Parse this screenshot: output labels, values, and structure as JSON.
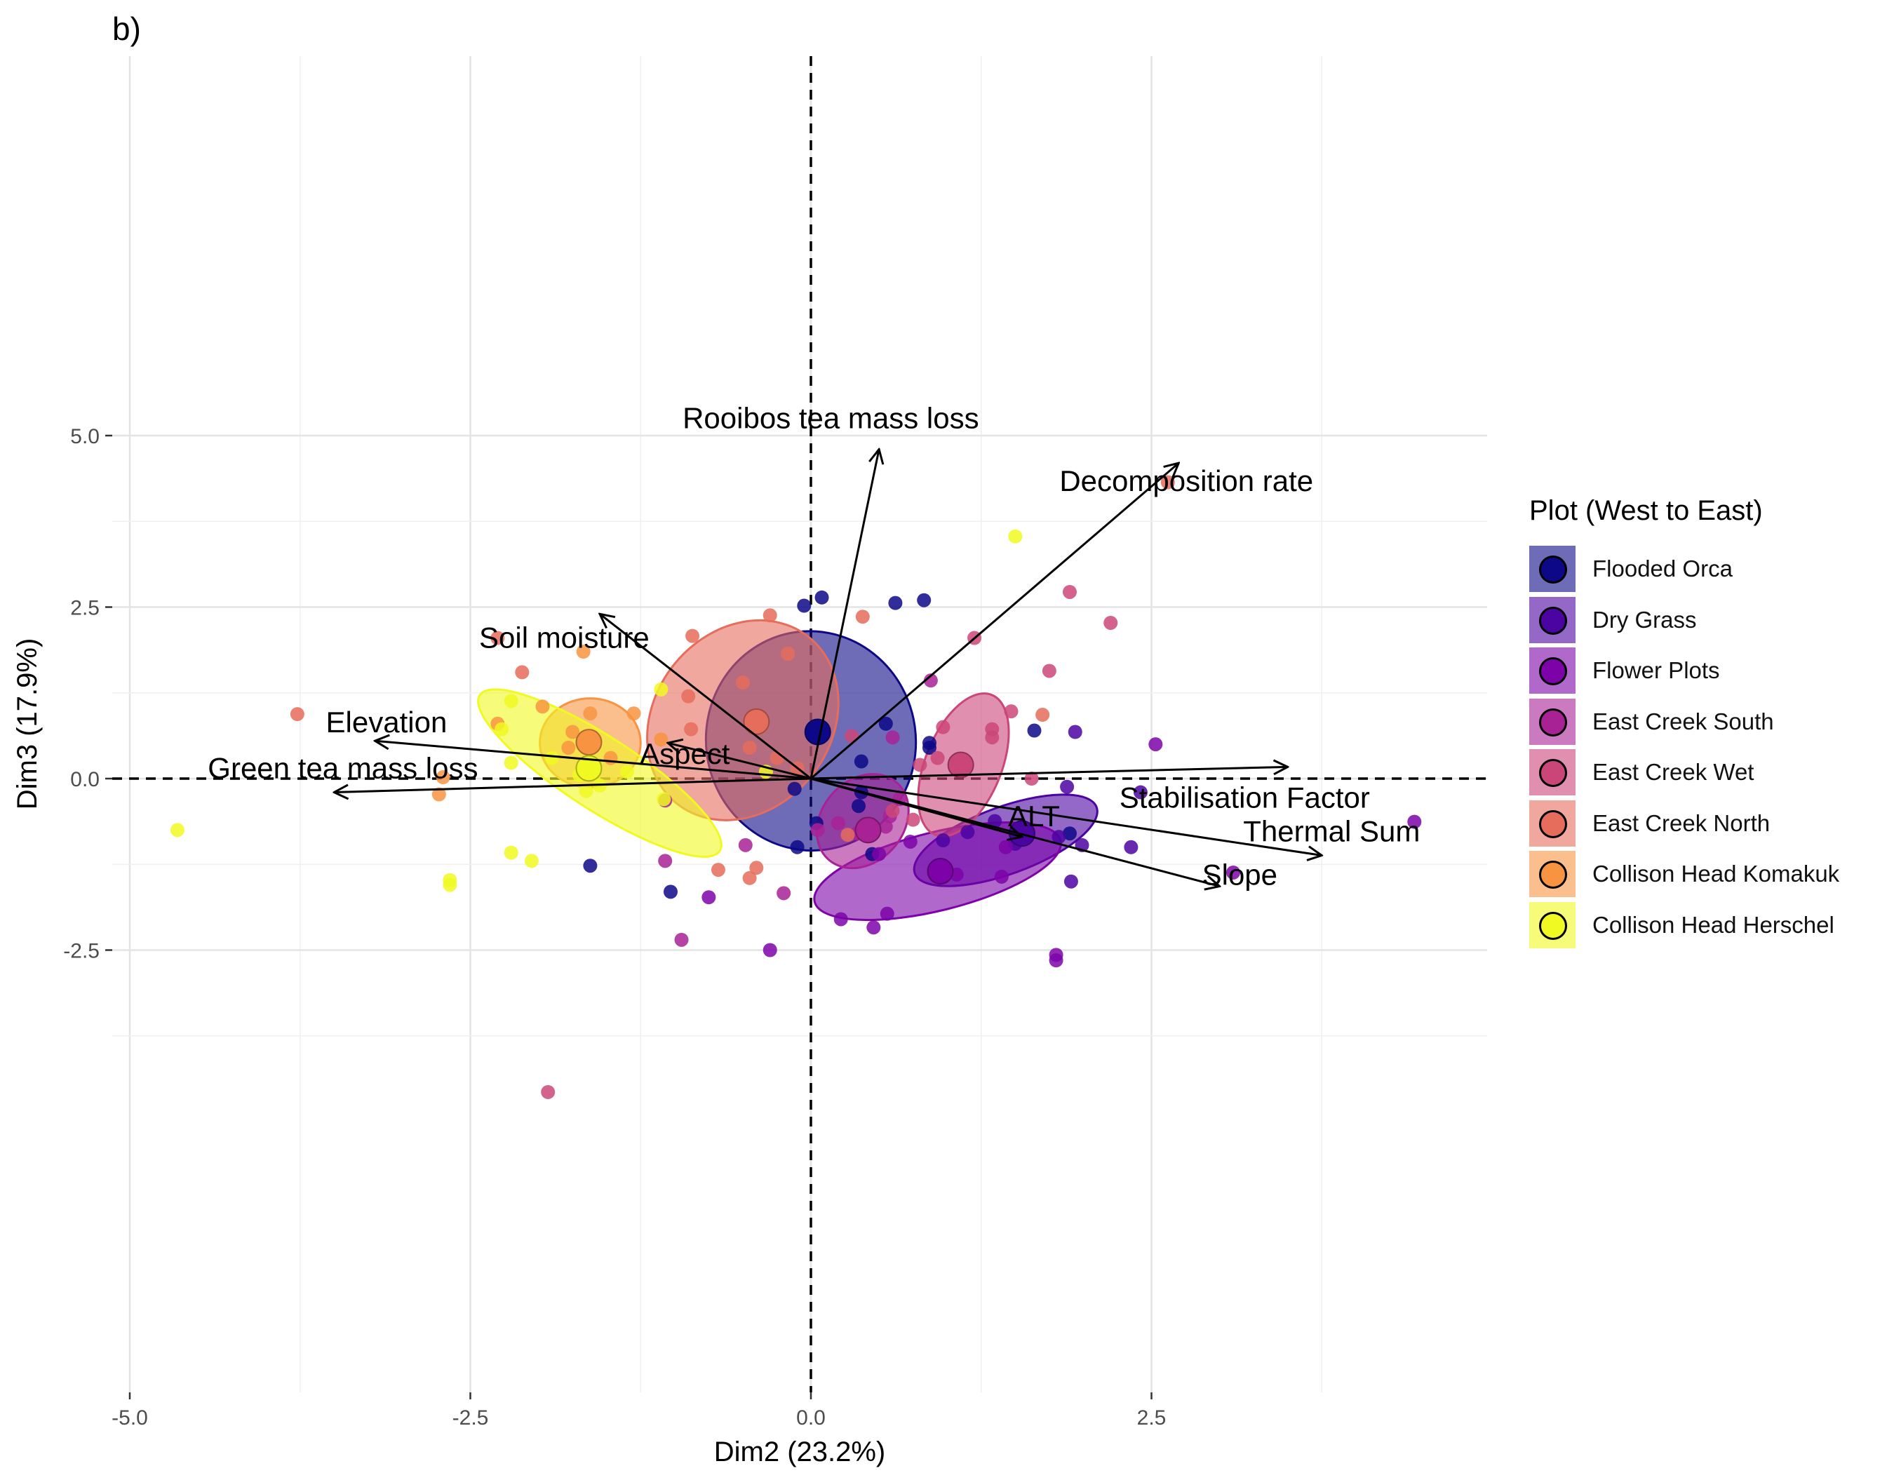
{
  "panel_label": "b)",
  "legend": {
    "title": "Plot (West to East)",
    "items": [
      {
        "name": "Flooded Orca",
        "color": "#0D0887"
      },
      {
        "name": "Dry Grass",
        "color": "#4B03A1"
      },
      {
        "name": "Flower Plots",
        "color": "#7D03A8"
      },
      {
        "name": "East Creek South",
        "color": "#A82296"
      },
      {
        "name": "East Creek Wet",
        "color": "#CB4678"
      },
      {
        "name": "East Creek North",
        "color": "#E66C5C"
      },
      {
        "name": "Collison Head Komakuk",
        "color": "#F89441"
      },
      {
        "name": "Collison Head Herschel",
        "color": "#F0F921"
      }
    ]
  },
  "chart_data": {
    "type": "scatter",
    "title": "",
    "xlabel": "Dim2 (23.2%)",
    "ylabel": "Dim3 (17.9%)",
    "xlim": [
      -5.0,
      4.9
    ],
    "ylim": [
      -4.6,
      5.15
    ],
    "xticks": [
      -5.0,
      -2.5,
      0.0,
      2.5
    ],
    "xtick_labels": [
      "-5.0",
      "-2.5",
      "0.0",
      "2.5"
    ],
    "yticks": [
      5.0,
      2.5,
      0.0,
      -2.5
    ],
    "ytick_labels": [
      "5.0",
      "2.5",
      "0.0",
      "-2.5"
    ],
    "grid": true,
    "reference_lines": {
      "x": 0,
      "y": 0,
      "style": "dashed"
    },
    "legend_position": "right",
    "vectors": [
      {
        "label": "Rooibos tea mass loss",
        "x": 0.5,
        "y": 4.8
      },
      {
        "label": "Decomposition rate",
        "x": 2.7,
        "y": 4.6
      },
      {
        "label": "Soil moisture",
        "x": -1.55,
        "y": 2.4
      },
      {
        "label": "Elevation",
        "x": -3.2,
        "y": 0.55
      },
      {
        "label": "Aspect",
        "x": -1.05,
        "y": 0.52
      },
      {
        "label": "Green tea mass loss",
        "x": -3.5,
        "y": -0.2
      },
      {
        "label": "Stabilisation Factor",
        "x": 3.5,
        "y": 0.17
      },
      {
        "label": "ALT",
        "x": 1.55,
        "y": -0.85
      },
      {
        "label": "Thermal Sum",
        "x": 3.75,
        "y": -1.12
      },
      {
        "label": "Slope",
        "x": 3.0,
        "y": -1.57
      }
    ],
    "series": [
      {
        "name": "Flooded Orca",
        "color": "#0D0887",
        "centroid": [
          0.05,
          0.68
        ],
        "ellipse": {
          "cx": 0.0,
          "cy": 0.55,
          "rx": 0.77,
          "ry": 1.6,
          "angle": -8
        },
        "x": [
          -0.05,
          0.08,
          0.62,
          0.83,
          0.55,
          0.87,
          0.87,
          0.37,
          -0.12,
          0.04,
          0.37,
          1.64,
          -1.62,
          -1.03,
          -0.1,
          0.45,
          0.35,
          1.9
        ],
        "y": [
          2.52,
          2.64,
          2.56,
          2.6,
          0.8,
          0.52,
          0.45,
          0.25,
          -0.15,
          -0.65,
          -0.2,
          0.7,
          -1.27,
          -1.65,
          -1.0,
          -1.1,
          -0.4,
          -0.8
        ]
      },
      {
        "name": "Dry Grass",
        "color": "#4B03A1",
        "centroid": [
          1.55,
          -0.8
        ],
        "ellipse": {
          "cx": 1.43,
          "cy": -0.9,
          "rx": 0.71,
          "ry": 0.49,
          "angle": -20
        },
        "x": [
          1.94,
          2.42,
          1.88,
          1.82,
          1.99,
          2.35,
          1.91,
          1.5,
          1.15,
          1.35,
          0.97
        ],
        "y": [
          0.68,
          -0.2,
          -0.12,
          -0.85,
          -0.97,
          -1.0,
          -1.5,
          -0.95,
          -0.78,
          -0.62,
          -0.9
        ]
      },
      {
        "name": "Flower Plots",
        "color": "#7D03A8",
        "centroid": [
          0.95,
          -1.35
        ],
        "ellipse": {
          "cx": 0.93,
          "cy": -1.35,
          "rx": 0.93,
          "ry": 0.57,
          "angle": -14
        },
        "x": [
          4.43,
          2.53,
          3.1,
          1.8,
          1.8,
          0.56,
          0.46,
          0.22,
          -0.3,
          -0.75,
          1.07,
          1.4,
          1.43,
          0.73,
          0.5
        ],
        "y": [
          -0.63,
          0.5,
          -1.37,
          -2.57,
          -2.65,
          -1.97,
          -2.17,
          -2.05,
          -2.5,
          -1.73,
          -1.4,
          -1.43,
          -1.0,
          -0.92,
          -1.1
        ]
      },
      {
        "name": "East Creek South",
        "color": "#A82296",
        "centroid": [
          0.42,
          -0.75
        ],
        "ellipse": {
          "cx": 0.38,
          "cy": -0.62,
          "rx": 0.3,
          "ry": 0.75,
          "angle": 42
        },
        "x": [
          0.88,
          0.6,
          0.65,
          0.58,
          0.55,
          0.2,
          0.05,
          -0.48,
          -1.07,
          -1.07,
          -0.95,
          -0.2,
          0.34
        ],
        "y": [
          1.43,
          0.6,
          -0.3,
          -0.55,
          -0.7,
          -0.65,
          -0.75,
          -0.97,
          -0.32,
          -1.2,
          -2.35,
          -1.67,
          -0.8
        ]
      },
      {
        "name": "East Creek Wet",
        "color": "#CB4678",
        "centroid": [
          1.1,
          0.2
        ],
        "ellipse": {
          "cx": 1.12,
          "cy": 0.2,
          "rx": 0.28,
          "ry": 1.1,
          "angle": 22
        },
        "x": [
          1.9,
          2.2,
          1.2,
          1.75,
          1.47,
          0.97,
          1.33,
          1.33,
          0.93,
          0.8,
          1.62,
          0.3,
          0.75,
          -1.93,
          0.6
        ],
        "y": [
          2.72,
          2.27,
          2.05,
          1.57,
          0.98,
          0.75,
          0.72,
          0.6,
          0.3,
          0.2,
          0.0,
          0.62,
          -0.6,
          -4.57,
          -0.47
        ]
      },
      {
        "name": "East Creek North",
        "color": "#E66C5C",
        "centroid": [
          -0.4,
          0.83
        ],
        "ellipse": {
          "cx": -0.5,
          "cy": 0.85,
          "rx": 0.78,
          "ry": 1.29,
          "angle": -52
        },
        "x": [
          -3.77,
          -2.3,
          -2.12,
          -0.87,
          -0.3,
          -0.17,
          0.38,
          2.62,
          -0.9,
          -0.5,
          -0.88,
          -0.45,
          -0.25,
          1.7,
          -0.68,
          -0.45,
          -0.4,
          0.27,
          -0.1
        ],
        "y": [
          0.94,
          2.05,
          1.55,
          2.08,
          2.38,
          1.82,
          2.36,
          4.32,
          1.2,
          1.4,
          0.72,
          0.45,
          0.3,
          0.93,
          -1.33,
          -1.45,
          -1.3,
          -0.82,
          0.15
        ]
      },
      {
        "name": "Collison Head Komakuk",
        "color": "#F89441",
        "centroid": [
          -1.63,
          0.53
        ],
        "ellipse": {
          "cx": -1.62,
          "cy": 0.52,
          "rx": 0.37,
          "ry": 0.65,
          "angle": 0
        },
        "x": [
          -1.67,
          -1.62,
          -1.97,
          -1.3,
          -1.1,
          -2.73,
          -2.7,
          -2.3,
          -1.6,
          -1.78,
          -1.47,
          -1.75
        ],
        "y": [
          1.85,
          0.95,
          1.05,
          0.95,
          0.57,
          -0.23,
          0.02,
          0.8,
          0.6,
          0.45,
          0.3,
          0.68
        ]
      },
      {
        "name": "Collison Head Herschel",
        "color": "#F0F921",
        "centroid": [
          -1.63,
          0.15
        ],
        "ellipse": {
          "cx": -1.55,
          "cy": 0.08,
          "rx": 1.05,
          "ry": 0.53,
          "angle": 33
        },
        "x": [
          -4.65,
          -2.65,
          -2.65,
          -2.2,
          -2.05,
          -2.2,
          -2.27,
          -2.2,
          -1.1,
          1.5,
          -1.55,
          -1.65,
          -1.9,
          -1.7,
          -1.35,
          -1.08,
          -0.33
        ],
        "y": [
          -0.75,
          -1.48,
          -1.55,
          -1.08,
          -1.2,
          1.13,
          0.72,
          0.23,
          1.3,
          3.53,
          -0.1,
          -0.18,
          0.3,
          0.05,
          0.1,
          -0.3,
          0.1
        ]
      }
    ]
  }
}
